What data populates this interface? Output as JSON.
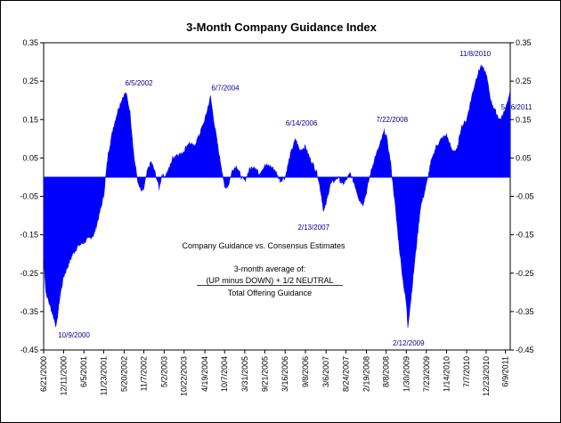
{
  "chart_data": {
    "type": "area",
    "title": "3-Month Company Guidance Index",
    "xlabel": "",
    "ylabel": "",
    "ylim": [
      -0.45,
      0.35
    ],
    "yticks": [
      0.35,
      0.25,
      0.15,
      0.05,
      -0.05,
      -0.15,
      -0.25,
      -0.35,
      -0.45
    ],
    "ytick_labels": [
      "0.35",
      "0.25",
      "0.15",
      "0.05",
      "-0.05",
      "-0.15",
      "-0.25",
      "-0.35",
      "-0.45"
    ],
    "xlim_dates": [
      "2000-06-21",
      "2011-07-20"
    ],
    "xtick_labels": [
      "6/21/2000",
      "12/11/2000",
      "6/5/2001",
      "11/23/2001",
      "5/20/2002",
      "11/7/2002",
      "5/2/2003",
      "10/22/2003",
      "4/19/2004",
      "10/7/2004",
      "3/31/2005",
      "9/21/2005",
      "3/16/2006",
      "9/8/2006",
      "3/6/2007",
      "8/24/2007",
      "2/19/2008",
      "8/8/2008",
      "1/30/2009",
      "7/23/2009",
      "1/14/2010",
      "7/7/2010",
      "12/23/2010",
      "6/9/2011"
    ],
    "xtick_dates": [
      "2000-06-21",
      "2000-12-11",
      "2001-06-05",
      "2001-11-23",
      "2002-05-20",
      "2002-11-07",
      "2003-05-02",
      "2003-10-22",
      "2004-04-19",
      "2004-10-07",
      "2005-03-31",
      "2005-09-21",
      "2006-03-16",
      "2006-09-08",
      "2007-03-06",
      "2007-08-24",
      "2008-02-19",
      "2008-08-08",
      "2009-01-30",
      "2009-07-23",
      "2010-01-14",
      "2010-07-07",
      "2010-12-23",
      "2011-06-09"
    ],
    "series": [
      {
        "name": "3-Month Company Guidance Index",
        "color": "#0000ff",
        "points": [
          [
            "2000-06-21",
            -0.2
          ],
          [
            "2000-07-10",
            -0.3
          ],
          [
            "2000-08-10",
            -0.33
          ],
          [
            "2000-09-10",
            -0.36
          ],
          [
            "2000-10-09",
            -0.39
          ],
          [
            "2000-11-10",
            -0.31
          ],
          [
            "2000-12-11",
            -0.26
          ],
          [
            "2001-01-20",
            -0.23
          ],
          [
            "2001-03-01",
            -0.2
          ],
          [
            "2001-04-15",
            -0.18
          ],
          [
            "2001-06-05",
            -0.17
          ],
          [
            "2001-07-20",
            -0.16
          ],
          [
            "2001-09-01",
            -0.15
          ],
          [
            "2001-10-15",
            -0.1
          ],
          [
            "2001-11-23",
            -0.05
          ],
          [
            "2002-01-01",
            0.06
          ],
          [
            "2002-02-15",
            0.13
          ],
          [
            "2002-04-01",
            0.18
          ],
          [
            "2002-05-10",
            0.21
          ],
          [
            "2002-06-05",
            0.22
          ],
          [
            "2002-07-10",
            0.17
          ],
          [
            "2002-08-15",
            0.05
          ],
          [
            "2002-09-20",
            -0.02
          ],
          [
            "2002-10-20",
            -0.04
          ],
          [
            "2002-11-07",
            -0.03
          ],
          [
            "2002-12-10",
            0.02
          ],
          [
            "2003-01-10",
            0.04
          ],
          [
            "2003-02-15",
            0.01
          ],
          [
            "2003-03-20",
            -0.03
          ],
          [
            "2003-04-15",
            0.01
          ],
          [
            "2003-05-02",
            0.0
          ],
          [
            "2003-06-10",
            0.02
          ],
          [
            "2003-07-15",
            0.05
          ],
          [
            "2003-08-20",
            0.06
          ],
          [
            "2003-09-25",
            0.06
          ],
          [
            "2003-10-22",
            0.07
          ],
          [
            "2003-12-01",
            0.09
          ],
          [
            "2004-01-15",
            0.08
          ],
          [
            "2004-03-01",
            0.11
          ],
          [
            "2004-04-19",
            0.15
          ],
          [
            "2004-06-07",
            0.21
          ],
          [
            "2004-07-15",
            0.13
          ],
          [
            "2004-08-20",
            0.06
          ],
          [
            "2004-09-20",
            0.01
          ],
          [
            "2004-10-07",
            -0.03
          ],
          [
            "2004-11-10",
            -0.02
          ],
          [
            "2004-12-15",
            0.02
          ],
          [
            "2005-01-20",
            0.03
          ],
          [
            "2005-03-01",
            0.0
          ],
          [
            "2005-03-31",
            -0.01
          ],
          [
            "2005-05-10",
            0.02
          ],
          [
            "2005-06-20",
            0.03
          ],
          [
            "2005-08-01",
            0.01
          ],
          [
            "2005-09-21",
            0.03
          ],
          [
            "2005-11-01",
            0.03
          ],
          [
            "2005-12-15",
            0.02
          ],
          [
            "2006-02-01",
            -0.01
          ],
          [
            "2006-03-16",
            0.0
          ],
          [
            "2006-05-01",
            0.06
          ],
          [
            "2006-06-14",
            0.1
          ],
          [
            "2006-07-20",
            0.07
          ],
          [
            "2006-09-08",
            0.08
          ],
          [
            "2006-10-15",
            0.05
          ],
          [
            "2006-11-20",
            0.03
          ],
          [
            "2006-12-20",
            0.01
          ],
          [
            "2007-01-20",
            -0.04
          ],
          [
            "2007-02-13",
            -0.09
          ],
          [
            "2007-03-06",
            -0.07
          ],
          [
            "2007-04-10",
            -0.02
          ],
          [
            "2007-05-15",
            -0.01
          ],
          [
            "2007-06-20",
            0.0
          ],
          [
            "2007-07-25",
            -0.02
          ],
          [
            "2007-08-24",
            -0.01
          ],
          [
            "2007-10-01",
            0.01
          ],
          [
            "2007-11-10",
            -0.02
          ],
          [
            "2007-12-20",
            -0.06
          ],
          [
            "2008-01-20",
            -0.07
          ],
          [
            "2008-02-19",
            -0.04
          ],
          [
            "2008-03-25",
            0.01
          ],
          [
            "2008-05-01",
            0.05
          ],
          [
            "2008-06-10",
            0.08
          ],
          [
            "2008-07-22",
            0.12
          ],
          [
            "2008-08-08",
            0.11
          ],
          [
            "2008-09-15",
            0.04
          ],
          [
            "2008-10-20",
            -0.06
          ],
          [
            "2008-11-25",
            -0.17
          ],
          [
            "2009-01-01",
            -0.27
          ],
          [
            "2009-01-30",
            -0.33
          ],
          [
            "2009-02-12",
            -0.39
          ],
          [
            "2009-03-10",
            -0.32
          ],
          [
            "2009-04-20",
            -0.2
          ],
          [
            "2009-06-01",
            -0.08
          ],
          [
            "2009-07-23",
            -0.02
          ],
          [
            "2009-09-01",
            0.04
          ],
          [
            "2009-10-15",
            0.08
          ],
          [
            "2009-12-01",
            0.1
          ],
          [
            "2010-01-14",
            0.11
          ],
          [
            "2010-03-01",
            0.07
          ],
          [
            "2010-04-15",
            0.07
          ],
          [
            "2010-05-20",
            0.13
          ],
          [
            "2010-07-07",
            0.15
          ],
          [
            "2010-08-20",
            0.21
          ],
          [
            "2010-09-30",
            0.26
          ],
          [
            "2010-11-08",
            0.29
          ],
          [
            "2010-12-23",
            0.27
          ],
          [
            "2011-02-01",
            0.2
          ],
          [
            "2011-03-15",
            0.17
          ],
          [
            "2011-04-20",
            0.15
          ],
          [
            "2011-05-16",
            0.16
          ],
          [
            "2011-06-09",
            0.18
          ],
          [
            "2011-07-20",
            0.22
          ]
        ]
      }
    ],
    "annotations": [
      {
        "label": "10/9/2000",
        "date": "2000-10-09",
        "value": -0.39
      },
      {
        "label": "6/5/2002",
        "date": "2002-06-05",
        "value": 0.22
      },
      {
        "label": "6/7/2004",
        "date": "2004-06-07",
        "value": 0.21
      },
      {
        "label": "6/14/2006",
        "date": "2006-06-14",
        "value": 0.1
      },
      {
        "label": "2/13/2007",
        "date": "2007-02-13",
        "value": -0.09
      },
      {
        "label": "7/22/2008",
        "date": "2008-07-22",
        "value": 0.12
      },
      {
        "label": "2/12/2009",
        "date": "2009-02-12",
        "value": -0.39
      },
      {
        "label": "11/8/2010",
        "date": "2010-11-08",
        "value": 0.29
      },
      {
        "label": "5/16/2011",
        "date": "2011-05-16",
        "value": 0.16
      }
    ],
    "notes": {
      "line1": "Company Guidance vs. Consensus Estimates",
      "line2": "3-month average of:",
      "line3": "(UP minus DOWN) + 1/2 NEUTRAL",
      "line4": "Total Offering Guidance"
    },
    "grid": false,
    "legend": "none"
  }
}
